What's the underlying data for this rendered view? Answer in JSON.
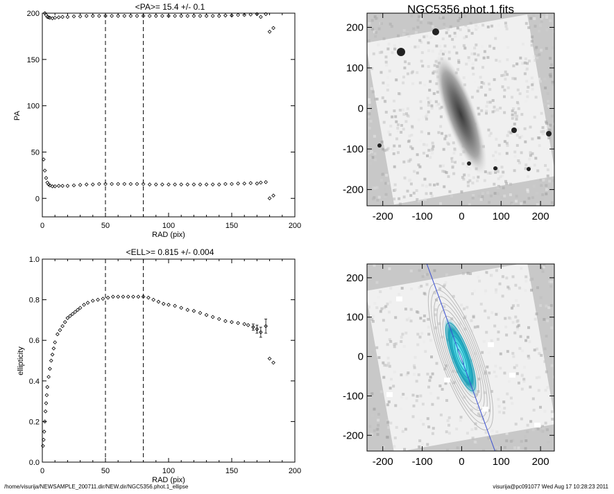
{
  "footer": {
    "left": "/home/visurija/NEWSAMPLE_200711.dir/NEW.dir/NGC5356.phot.1_ellipse",
    "right": "visurija@pc091077  Wed Aug 17 10:28:23 2011"
  },
  "chart_data": [
    {
      "type": "scatter",
      "title": "<PA>=  15.4 +/-   0.1",
      "xlabel": "RAD (pix)",
      "ylabel": "PA",
      "xlim": [
        0,
        200
      ],
      "ylim": [
        -20,
        200
      ],
      "xticks": [
        0,
        50,
        100,
        150,
        200
      ],
      "yticks": [
        0,
        50,
        100,
        150,
        200
      ],
      "vlines": [
        50,
        80
      ],
      "series": [
        {
          "x": [
            1,
            2,
            3,
            4,
            5,
            6,
            8,
            10,
            13,
            16,
            20,
            25,
            30,
            35,
            40,
            45,
            50,
            55,
            60,
            65,
            70,
            75,
            80,
            85,
            90,
            95,
            100,
            105,
            110,
            115,
            120,
            125,
            130,
            135,
            140,
            145,
            150,
            155,
            160,
            165,
            170,
            173,
            177,
            180,
            183
          ],
          "y": [
            42,
            30,
            22,
            17,
            15,
            14,
            13,
            13,
            13.5,
            13.5,
            13.5,
            14,
            14.5,
            15,
            15,
            15.5,
            15.5,
            15.5,
            15.5,
            15.5,
            15.5,
            15.5,
            15.5,
            15,
            15,
            15,
            15,
            15,
            15,
            15,
            15,
            15,
            15,
            15,
            15,
            15.5,
            15.5,
            16,
            16,
            16.5,
            16,
            17,
            17.5,
            0,
            3
          ]
        },
        {
          "x": [
            1,
            2,
            3,
            4,
            5,
            6,
            8,
            10,
            13,
            16,
            20,
            25,
            30,
            35,
            40,
            45,
            50,
            55,
            60,
            65,
            70,
            75,
            80,
            85,
            90,
            95,
            100,
            105,
            110,
            115,
            120,
            125,
            130,
            135,
            140,
            145,
            150,
            155,
            160,
            165,
            170,
            173,
            177,
            180,
            183
          ],
          "y": [
            202,
            200,
            198,
            196,
            195.5,
            195,
            194.5,
            195,
            195.5,
            196,
            196,
            196.5,
            196.5,
            197,
            197,
            197,
            197,
            197,
            197,
            197,
            197,
            197,
            197,
            197,
            197,
            197,
            197,
            197,
            197,
            197,
            197,
            197,
            197,
            197,
            197,
            197.5,
            197.5,
            198,
            198,
            198.5,
            199,
            196,
            199,
            180,
            184
          ]
        }
      ]
    },
    {
      "type": "scatter",
      "title": "<ELL>= 0.815 +/-  0.004",
      "xlabel": "RAD (pix)",
      "ylabel": "ellipticity",
      "xlim": [
        0,
        200
      ],
      "ylim": [
        0.0,
        1.0
      ],
      "xticks": [
        0,
        50,
        100,
        150,
        200
      ],
      "yticks": [
        0.0,
        0.2,
        0.4,
        0.6,
        0.8,
        1.0
      ],
      "ytick_labels": [
        "0.0",
        "0.2",
        "0.4",
        "0.6",
        "0.8",
        "1.0"
      ],
      "vlines": [
        50,
        80
      ],
      "series": [
        {
          "x": [
            0.5,
            1,
            1.5,
            2,
            2.5,
            3,
            3.5,
            4,
            5,
            6,
            7,
            8,
            9,
            10,
            12,
            14,
            16,
            18,
            20,
            22,
            24,
            26,
            28,
            30,
            33,
            36,
            40,
            44,
            48,
            52,
            56,
            60,
            64,
            68,
            72,
            76,
            80,
            84,
            88,
            92,
            96,
            100,
            105,
            110,
            115,
            120,
            125,
            130,
            135,
            140,
            145,
            150,
            155,
            160,
            163,
            167,
            170,
            173,
            177,
            180,
            183
          ],
          "y": [
            0.08,
            0.11,
            0.15,
            0.2,
            0.25,
            0.29,
            0.33,
            0.37,
            0.42,
            0.46,
            0.5,
            0.53,
            0.56,
            0.59,
            0.63,
            0.65,
            0.67,
            0.69,
            0.71,
            0.72,
            0.73,
            0.74,
            0.75,
            0.76,
            0.775,
            0.785,
            0.795,
            0.8,
            0.805,
            0.81,
            0.815,
            0.815,
            0.815,
            0.815,
            0.815,
            0.815,
            0.815,
            0.81,
            0.8,
            0.79,
            0.78,
            0.775,
            0.77,
            0.76,
            0.75,
            0.745,
            0.735,
            0.725,
            0.715,
            0.705,
            0.695,
            0.69,
            0.685,
            0.68,
            0.675,
            0.665,
            0.655,
            0.64,
            0.67,
            0.51,
            0.49
          ],
          "yerr": [
            0.01,
            0.01,
            0.01,
            0.01,
            0.01,
            0.01,
            0.01,
            0.01,
            0.005,
            0.005,
            0.005,
            0.005,
            0.005,
            0.005,
            0.005,
            0.005,
            0.005,
            0.005,
            0.005,
            0.005,
            0.005,
            0.005,
            0.005,
            0.005,
            0.005,
            0.005,
            0.005,
            0.005,
            0.005,
            0.005,
            0.005,
            0.005,
            0.005,
            0.005,
            0.005,
            0.005,
            0.005,
            0.005,
            0.005,
            0.005,
            0.005,
            0.005,
            0.005,
            0.005,
            0.005,
            0.005,
            0.005,
            0.005,
            0.005,
            0.005,
            0.005,
            0.005,
            0.005,
            0.01,
            0.01,
            0.015,
            0.02,
            0.025,
            0.035,
            0.01,
            0.01
          ]
        }
      ]
    },
    {
      "type": "heatmap",
      "title": "NGC5356.phot.1.fits",
      "xlim": [
        -240,
        235
      ],
      "ylim": [
        -240,
        235
      ],
      "xticks": [
        -200,
        -100,
        0,
        100,
        200
      ],
      "yticks": [
        -200,
        -100,
        0,
        100,
        200
      ],
      "colormap": "grayscale"
    },
    {
      "type": "heatmap",
      "title": "",
      "xlim": [
        -240,
        235
      ],
      "ylim": [
        -240,
        235
      ],
      "xticks": [
        -200,
        -100,
        0,
        100,
        200
      ],
      "yticks": [
        -200,
        -100,
        0,
        100,
        200
      ],
      "colormap": "grayscale with cyan contours",
      "overlay_color": "#3a4fd0",
      "contour_color": "#5fe6f0"
    }
  ]
}
